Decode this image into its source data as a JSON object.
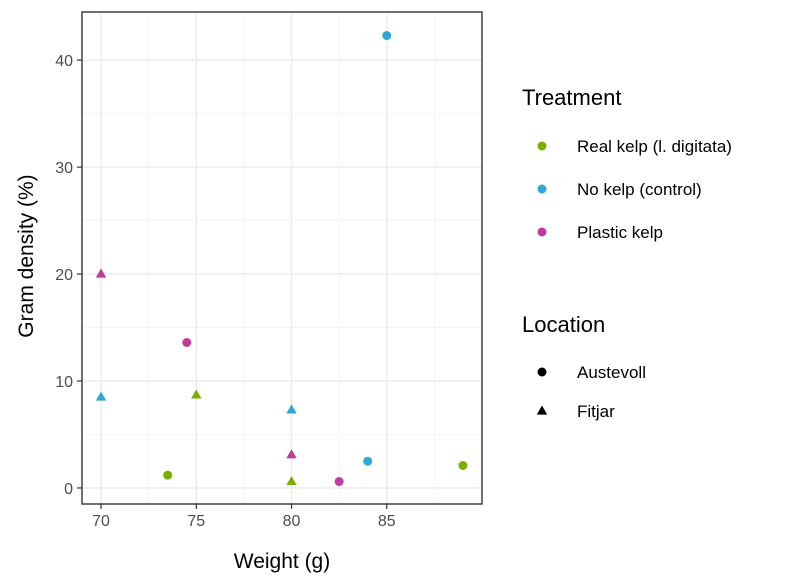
{
  "chart_data": {
    "type": "scatter",
    "title": "",
    "xlabel": "Weight (g)",
    "ylabel": "Gram density (%)",
    "xlim": [
      69.0,
      90.0
    ],
    "ylim": [
      -1.5,
      44.5
    ],
    "xticks": [
      70,
      75,
      80,
      85
    ],
    "yticks": [
      0,
      10,
      20,
      30,
      40
    ],
    "grid": true,
    "legend_position": "right",
    "color_legend": {
      "title": "Treatment",
      "entries": [
        {
          "name": "Real kelp (l. digitata)",
          "color": "#7CAE00"
        },
        {
          "name": "No kelp (control)",
          "color": "#2EA9D6"
        },
        {
          "name": "Plastic kelp",
          "color": "#C03B9E"
        }
      ]
    },
    "shape_legend": {
      "title": "Location",
      "entries": [
        {
          "name": "Austevoll",
          "shape": "circle"
        },
        {
          "name": "Fitjar",
          "shape": "triangle"
        }
      ]
    },
    "points": [
      {
        "x": 85.0,
        "y": 42.3,
        "treatment": 1,
        "location": 0
      },
      {
        "x": 84.0,
        "y": 2.5,
        "treatment": 1,
        "location": 0
      },
      {
        "x": 70.0,
        "y": 8.5,
        "treatment": 1,
        "location": 1
      },
      {
        "x": 80.0,
        "y": 7.3,
        "treatment": 1,
        "location": 1
      },
      {
        "x": 74.5,
        "y": 13.6,
        "treatment": 2,
        "location": 0
      },
      {
        "x": 82.5,
        "y": 0.6,
        "treatment": 2,
        "location": 0
      },
      {
        "x": 70.0,
        "y": 20.0,
        "treatment": 2,
        "location": 1
      },
      {
        "x": 80.0,
        "y": 3.1,
        "treatment": 2,
        "location": 1
      },
      {
        "x": 73.5,
        "y": 1.2,
        "treatment": 0,
        "location": 0
      },
      {
        "x": 89.0,
        "y": 2.1,
        "treatment": 0,
        "location": 0
      },
      {
        "x": 75.0,
        "y": 8.7,
        "treatment": 0,
        "location": 1
      },
      {
        "x": 80.0,
        "y": 0.6,
        "treatment": 0,
        "location": 1
      }
    ]
  }
}
